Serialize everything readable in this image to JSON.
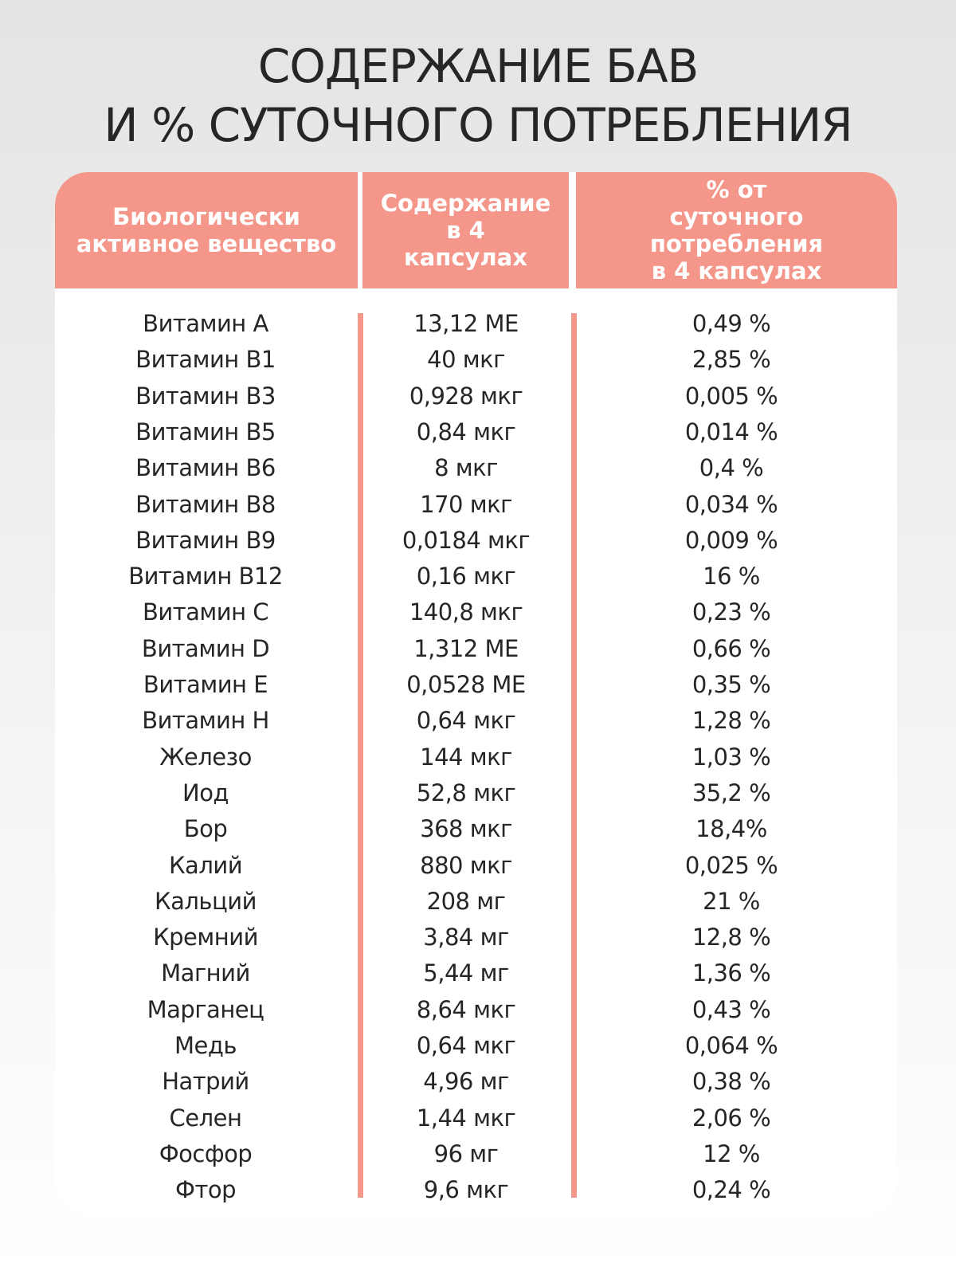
{
  "title": [
    "СОДЕРЖАНИЕ БАВ",
    "И % СУТОЧНОГО ПОТРЕБЛЕНИЯ"
  ],
  "table": {
    "header": [
      "Биологически активное вещество",
      "Содержание в 4 капсулах",
      "% от суточного потребления в 4 капсулах"
    ],
    "rows": [
      [
        "Витамин А",
        "13,12 МЕ",
        "0,49 %"
      ],
      [
        "Витамин В1",
        "40 мкг",
        "2,85 %"
      ],
      [
        "Витамин В3",
        "0,928 мкг",
        "0,005 %"
      ],
      [
        "Витамин В5",
        "0,84 мкг",
        "0,014 %"
      ],
      [
        "Витамин В6",
        "8 мкг",
        "0,4 %"
      ],
      [
        "Витамин В8",
        "170 мкг",
        "0,034 %"
      ],
      [
        "Витамин В9",
        "0,0184 мкг",
        "0,009 %"
      ],
      [
        "Витамин В12",
        "0,16 мкг",
        "16 %"
      ],
      [
        "Витамин С",
        "140,8 мкг",
        "0,23 %"
      ],
      [
        "Витамин D",
        "1,312 МЕ",
        "0,66 %"
      ],
      [
        "Витамин Е",
        "0,0528 МЕ",
        "0,35 %"
      ],
      [
        "Витамин Н",
        "0,64 мкг",
        "1,28 %"
      ],
      [
        "Железо",
        "144 мкг",
        "1,03 %"
      ],
      [
        "Иод",
        "52,8 мкг",
        "35,2 %"
      ],
      [
        "Бор",
        "368 мкг",
        "18,4%"
      ],
      [
        "Калий",
        "880 мкг",
        "0,025 %"
      ],
      [
        "Кальций",
        "208 мг",
        "21 %"
      ],
      [
        "Кремний",
        "3,84 мг",
        "12,8 %"
      ],
      [
        "Магний",
        "5,44 мг",
        "1,36 %"
      ],
      [
        "Марганец",
        "8,64 мкг",
        "0,43 %"
      ],
      [
        "Медь",
        "0,64 мкг",
        "0,064 %"
      ],
      [
        "Натрий",
        "4,96 мг",
        "0,38 %"
      ],
      [
        "Селен",
        "1,44 мкг",
        "2,06 %"
      ],
      [
        "Фосфор",
        "96 мг",
        "12 %"
      ],
      [
        "Фтор",
        "9,6 мкг",
        "0,24 %"
      ]
    ]
  }
}
